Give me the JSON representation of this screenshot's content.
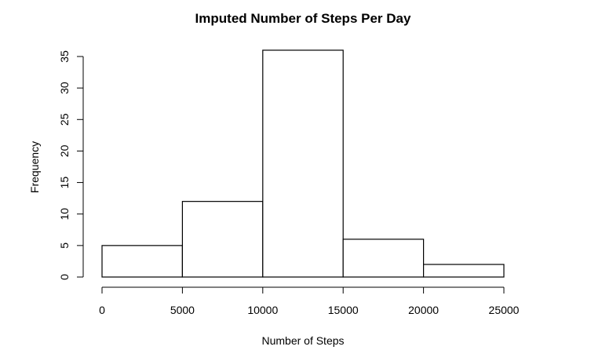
{
  "chart_data": {
    "type": "bar",
    "title": "Imputed Number of Steps Per Day",
    "xlabel": "Number of Steps",
    "ylabel": "Frequency",
    "bins": [
      [
        0,
        5000
      ],
      [
        5000,
        10000
      ],
      [
        10000,
        15000
      ],
      [
        15000,
        20000
      ],
      [
        20000,
        25000
      ]
    ],
    "values": [
      5,
      12,
      36,
      6,
      2
    ],
    "xlim": [
      0,
      25000
    ],
    "ylim": [
      0,
      35
    ],
    "x_ticks": [
      0,
      5000,
      10000,
      15000,
      20000,
      25000
    ],
    "y_ticks": [
      0,
      5,
      10,
      15,
      20,
      25,
      30,
      35
    ],
    "grid": false,
    "colors": {
      "bar_fill": "#ffffff",
      "bar_stroke": "#000000"
    }
  }
}
